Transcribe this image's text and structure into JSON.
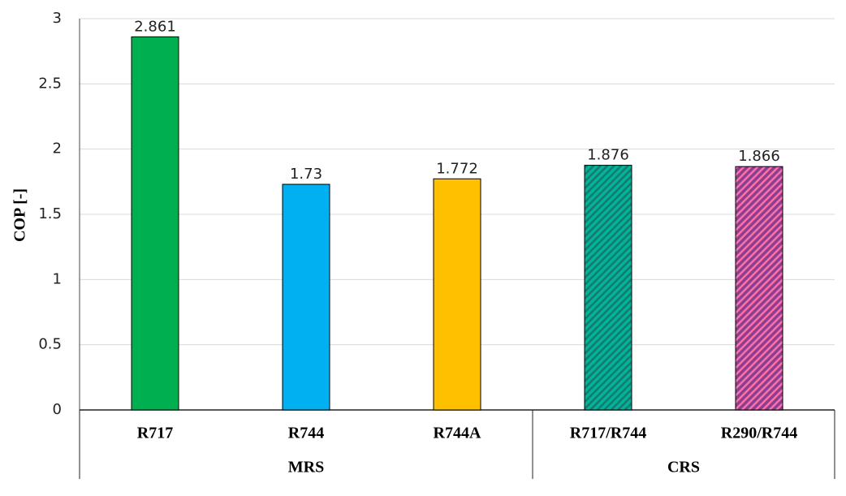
{
  "chart_data": {
    "type": "bar",
    "y_label": "COP [-]",
    "categories": [
      "R717",
      "R744",
      "R744A",
      "R717/R744",
      "R290/R744"
    ],
    "group_labels": [
      "MRS",
      "MRS",
      "MRS",
      "CRS",
      "CRS"
    ],
    "values": [
      2.861,
      1.73,
      1.772,
      1.876,
      1.866
    ],
    "colors": [
      "#00b050",
      "#00b0f0",
      "#ffc000",
      "#00b39a",
      "#8a3f8f"
    ],
    "hatch_colors": [
      null,
      null,
      null,
      "#137a6c",
      "#ff6fa8"
    ],
    "ylim": [
      0,
      3
    ],
    "yticks": [
      0,
      0.5,
      1,
      1.5,
      2,
      2.5,
      3
    ],
    "grid": true
  }
}
